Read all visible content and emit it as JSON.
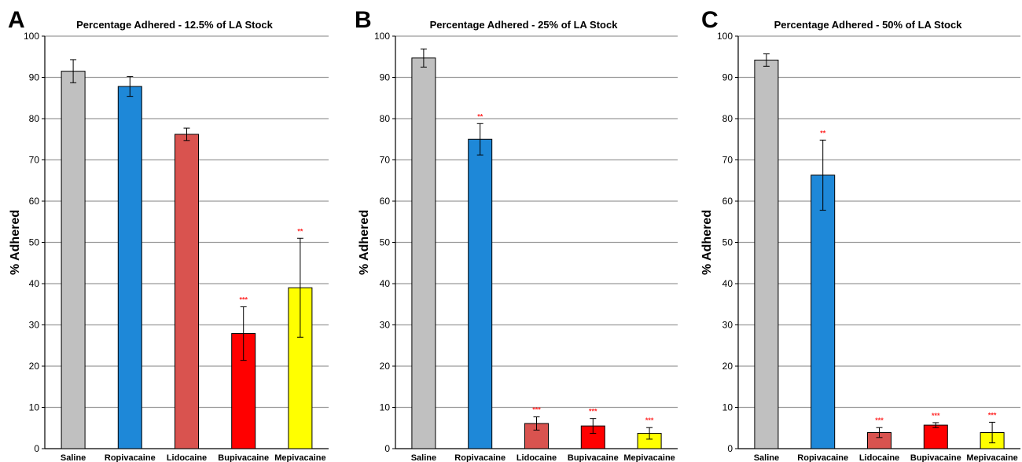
{
  "chart_data": [
    {
      "panel": "A",
      "type": "bar",
      "title": "Percentage Adhered - 12.5% of LA Stock",
      "ylabel": "% Adhered",
      "xlabel": "",
      "ylim": [
        0,
        100
      ],
      "yticks": [
        "0",
        "10",
        "20",
        "30",
        "40",
        "50",
        "60",
        "70",
        "80",
        "90",
        "100"
      ],
      "grid": true,
      "categories": [
        "Saline",
        "Ropivacaine",
        "Lidocaine",
        "Bupivacaine",
        "Mepivacaine"
      ],
      "values": [
        91.5,
        87.8,
        76.2,
        27.9,
        39.0
      ],
      "error": [
        2.8,
        2.4,
        1.5,
        6.5,
        12.0
      ],
      "significance": [
        "",
        "",
        "",
        "***",
        "**"
      ],
      "colors": [
        "#c0c0c0",
        "#1e88d8",
        "#d9534f",
        "#ff0000",
        "#ffff00"
      ]
    },
    {
      "panel": "B",
      "type": "bar",
      "title": "Percentage Adhered - 25% of LA Stock",
      "ylabel": "% Adhered",
      "xlabel": "",
      "ylim": [
        0,
        100
      ],
      "yticks": [
        "0",
        "10",
        "20",
        "30",
        "40",
        "50",
        "60",
        "70",
        "80",
        "90",
        "100"
      ],
      "grid": true,
      "categories": [
        "Saline",
        "Ropivacaine",
        "Lidocaine",
        "Bupivacaine",
        "Mepivacaine"
      ],
      "values": [
        94.7,
        75.0,
        6.1,
        5.5,
        3.7
      ],
      "error": [
        2.2,
        3.8,
        1.6,
        1.8,
        1.4
      ],
      "significance": [
        "",
        "**",
        "***",
        "***",
        "***"
      ],
      "colors": [
        "#c0c0c0",
        "#1e88d8",
        "#d9534f",
        "#ff0000",
        "#ffff00"
      ]
    },
    {
      "panel": "C",
      "type": "bar",
      "title": "Percentage Adhered - 50% of LA Stock",
      "ylabel": "% Adhered",
      "xlabel": "",
      "ylim": [
        0,
        100
      ],
      "yticks": [
        "0",
        "10",
        "20",
        "30",
        "40",
        "50",
        "60",
        "70",
        "80",
        "90",
        "100"
      ],
      "grid": true,
      "categories": [
        "Saline",
        "Ropivacaine",
        "Lidocaine",
        "Bupivacaine",
        "Mepivacaine"
      ],
      "values": [
        94.2,
        66.3,
        3.9,
        5.7,
        3.9
      ],
      "error": [
        1.5,
        8.5,
        1.2,
        0.6,
        2.5
      ],
      "significance": [
        "",
        "**",
        "***",
        "***",
        "***"
      ],
      "colors": [
        "#c0c0c0",
        "#1e88d8",
        "#d9534f",
        "#ff0000",
        "#ffff00"
      ]
    }
  ],
  "colors": {
    "grid": "#9a9a9a",
    "axis": "#000000",
    "bar_outline": "#000000",
    "significance": "#ff2a2a"
  }
}
